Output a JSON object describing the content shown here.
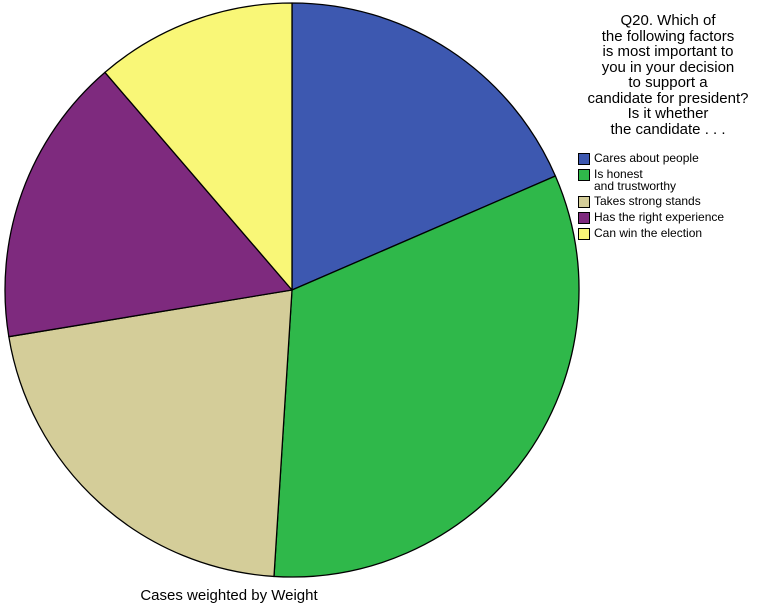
{
  "chart_data": {
    "type": "pie",
    "legend_title": "Q20. Which of the following factors is most important to you in your decision to support a candidate for president? Is it whether the candidate . . .",
    "legend_position": "right",
    "start": "12 o'clock",
    "direction": "clockwise",
    "slices": [
      {
        "name": "Cares about people",
        "value": 18.5,
        "color": "#3d58b0"
      },
      {
        "name": "Is honest and trustworthy",
        "value": 32.5,
        "color": "#2fb84a"
      },
      {
        "name": "Takes strong stands",
        "value": 21.4,
        "color": "#d4cd99"
      },
      {
        "name": "Has the right experience",
        "value": 16.3,
        "color": "#7e2a7e"
      },
      {
        "name": "Can win the election",
        "value": 11.3,
        "color": "#f9f777"
      }
    ],
    "footnote": "Cases weighted by Weight"
  }
}
